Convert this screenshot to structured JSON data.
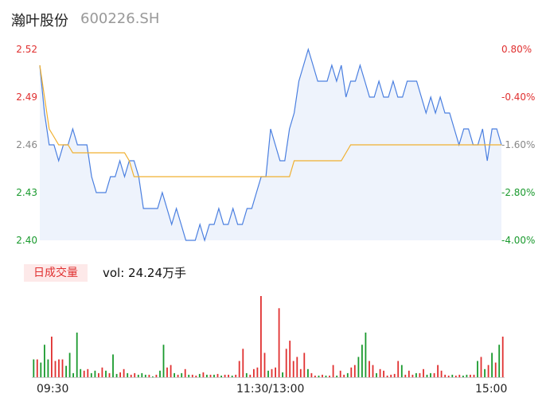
{
  "header": {
    "name": "瀚叶股份",
    "code": "600226.SH"
  },
  "vol_tab": {
    "label": "日成交量",
    "value": "vol: 24.24万手"
  },
  "colors": {
    "up": "#e03030",
    "down": "#1a9a2e",
    "price": "#4a7fe0",
    "avg": "#f0b030",
    "fill": "#eef3fc"
  },
  "chart_data": [
    {
      "type": "line",
      "title": "",
      "ylim": [
        2.4,
        2.52
      ],
      "y_ticks": [
        "2.52",
        "2.49",
        "2.46",
        "2.43",
        "2.40"
      ],
      "y_ticks_right": [
        "0.80%",
        "-0.40%",
        "-1.60%",
        "-2.80%",
        "-4.00%"
      ],
      "x_ticks": [
        "09:30",
        "11:30/13:00",
        "15:00"
      ],
      "series": [
        {
          "key": "price",
          "values": [
            2.51,
            2.48,
            2.46,
            2.46,
            2.45,
            2.46,
            2.46,
            2.47,
            2.46,
            2.46,
            2.46,
            2.44,
            2.43,
            2.43,
            2.43,
            2.44,
            2.44,
            2.45,
            2.44,
            2.45,
            2.45,
            2.44,
            2.42,
            2.42,
            2.42,
            2.42,
            2.43,
            2.42,
            2.41,
            2.42,
            2.41,
            2.4,
            2.4,
            2.4,
            2.41,
            2.4,
            2.41,
            2.41,
            2.42,
            2.41,
            2.41,
            2.42,
            2.41,
            2.41,
            2.42,
            2.42,
            2.43,
            2.44,
            2.44,
            2.47,
            2.46,
            2.45,
            2.45,
            2.47,
            2.48,
            2.5,
            2.51,
            2.52,
            2.51,
            2.5,
            2.5,
            2.5,
            2.51,
            2.5,
            2.51,
            2.49,
            2.5,
            2.5,
            2.51,
            2.5,
            2.49,
            2.49,
            2.5,
            2.49,
            2.49,
            2.5,
            2.49,
            2.49,
            2.5,
            2.5,
            2.5,
            2.49,
            2.48,
            2.49,
            2.48,
            2.49,
            2.48,
            2.48,
            2.47,
            2.46,
            2.47,
            2.47,
            2.46,
            2.46,
            2.47,
            2.45,
            2.47,
            2.47,
            2.46
          ]
        },
        {
          "key": "avg",
          "values": [
            2.51,
            2.49,
            2.47,
            2.465,
            2.46,
            2.46,
            2.46,
            2.455,
            2.455,
            2.455,
            2.455,
            2.455,
            2.455,
            2.455,
            2.455,
            2.455,
            2.455,
            2.455,
            2.455,
            2.45,
            2.44,
            2.44,
            2.44,
            2.44,
            2.44,
            2.44,
            2.44,
            2.44,
            2.44,
            2.44,
            2.44,
            2.44,
            2.44,
            2.44,
            2.44,
            2.44,
            2.44,
            2.44,
            2.44,
            2.44,
            2.44,
            2.44,
            2.44,
            2.44,
            2.44,
            2.44,
            2.44,
            2.44,
            2.44,
            2.44,
            2.44,
            2.44,
            2.44,
            2.44,
            2.45,
            2.45,
            2.45,
            2.45,
            2.45,
            2.45,
            2.45,
            2.45,
            2.45,
            2.45,
            2.45,
            2.455,
            2.46,
            2.46,
            2.46,
            2.46,
            2.46,
            2.46,
            2.46,
            2.46,
            2.46,
            2.46,
            2.46,
            2.46,
            2.46,
            2.46,
            2.46,
            2.46,
            2.46,
            2.46,
            2.46,
            2.46,
            2.46,
            2.46,
            2.46,
            2.46,
            2.46,
            2.46,
            2.46,
            2.46,
            2.46,
            2.46,
            2.46,
            2.46,
            2.46
          ]
        }
      ]
    },
    {
      "type": "bar",
      "title": "",
      "ylim": [
        0,
        100
      ],
      "series": [
        {
          "key": "volume",
          "values": [
            22,
            22,
            18,
            40,
            22,
            50,
            20,
            22,
            22,
            14,
            30,
            5,
            55,
            10,
            8,
            10,
            5,
            8,
            5,
            12,
            8,
            5,
            28,
            4,
            6,
            10,
            5,
            3,
            5,
            3,
            5,
            3,
            3,
            1,
            3,
            8,
            40,
            12,
            15,
            5,
            3,
            5,
            10,
            3,
            3,
            2,
            4,
            6,
            3,
            3,
            3,
            4,
            2,
            3,
            3,
            2,
            3,
            20,
            35,
            5,
            3,
            10,
            12,
            100,
            30,
            8,
            10,
            12,
            85,
            6,
            35,
            45,
            20,
            25,
            10,
            30,
            10,
            5,
            2,
            2,
            3,
            2,
            2,
            15,
            2,
            8,
            3,
            5,
            12,
            15,
            25,
            40,
            55,
            20,
            15,
            5,
            10,
            8,
            2,
            3,
            4,
            20,
            15,
            3,
            8,
            3,
            5,
            5,
            10,
            3,
            5,
            5,
            15,
            8,
            3,
            2,
            3,
            2,
            3,
            2,
            3,
            3,
            3,
            20,
            25,
            10,
            15,
            30,
            18,
            40,
            50
          ],
          "up": [
            0,
            1,
            0,
            0,
            0,
            1,
            1,
            1,
            1,
            0,
            0,
            0,
            0,
            0,
            1,
            1,
            0,
            0,
            1,
            1,
            0,
            1,
            0,
            0,
            1,
            1,
            0,
            1,
            1,
            0,
            0,
            0,
            1,
            0,
            1,
            0,
            0,
            1,
            1,
            0,
            1,
            0,
            1,
            0,
            1,
            1,
            0,
            1,
            0,
            1,
            0,
            1,
            0,
            1,
            1,
            0,
            1,
            1,
            1,
            0,
            1,
            1,
            1,
            1,
            1,
            0,
            1,
            1,
            1,
            0,
            1,
            1,
            1,
            1,
            1,
            1,
            0,
            1,
            1,
            0,
            1,
            0,
            1,
            1,
            0,
            1,
            1,
            0,
            1,
            1,
            0,
            0,
            0,
            1,
            1,
            0,
            1,
            1,
            1,
            1,
            1,
            1,
            0,
            1,
            1,
            1,
            0,
            1,
            1,
            0,
            0,
            1,
            1,
            1,
            1,
            1,
            0,
            1,
            1,
            0,
            0,
            1,
            1,
            0,
            1,
            0,
            1,
            0,
            1,
            0,
            1
          ]
        }
      ]
    }
  ]
}
